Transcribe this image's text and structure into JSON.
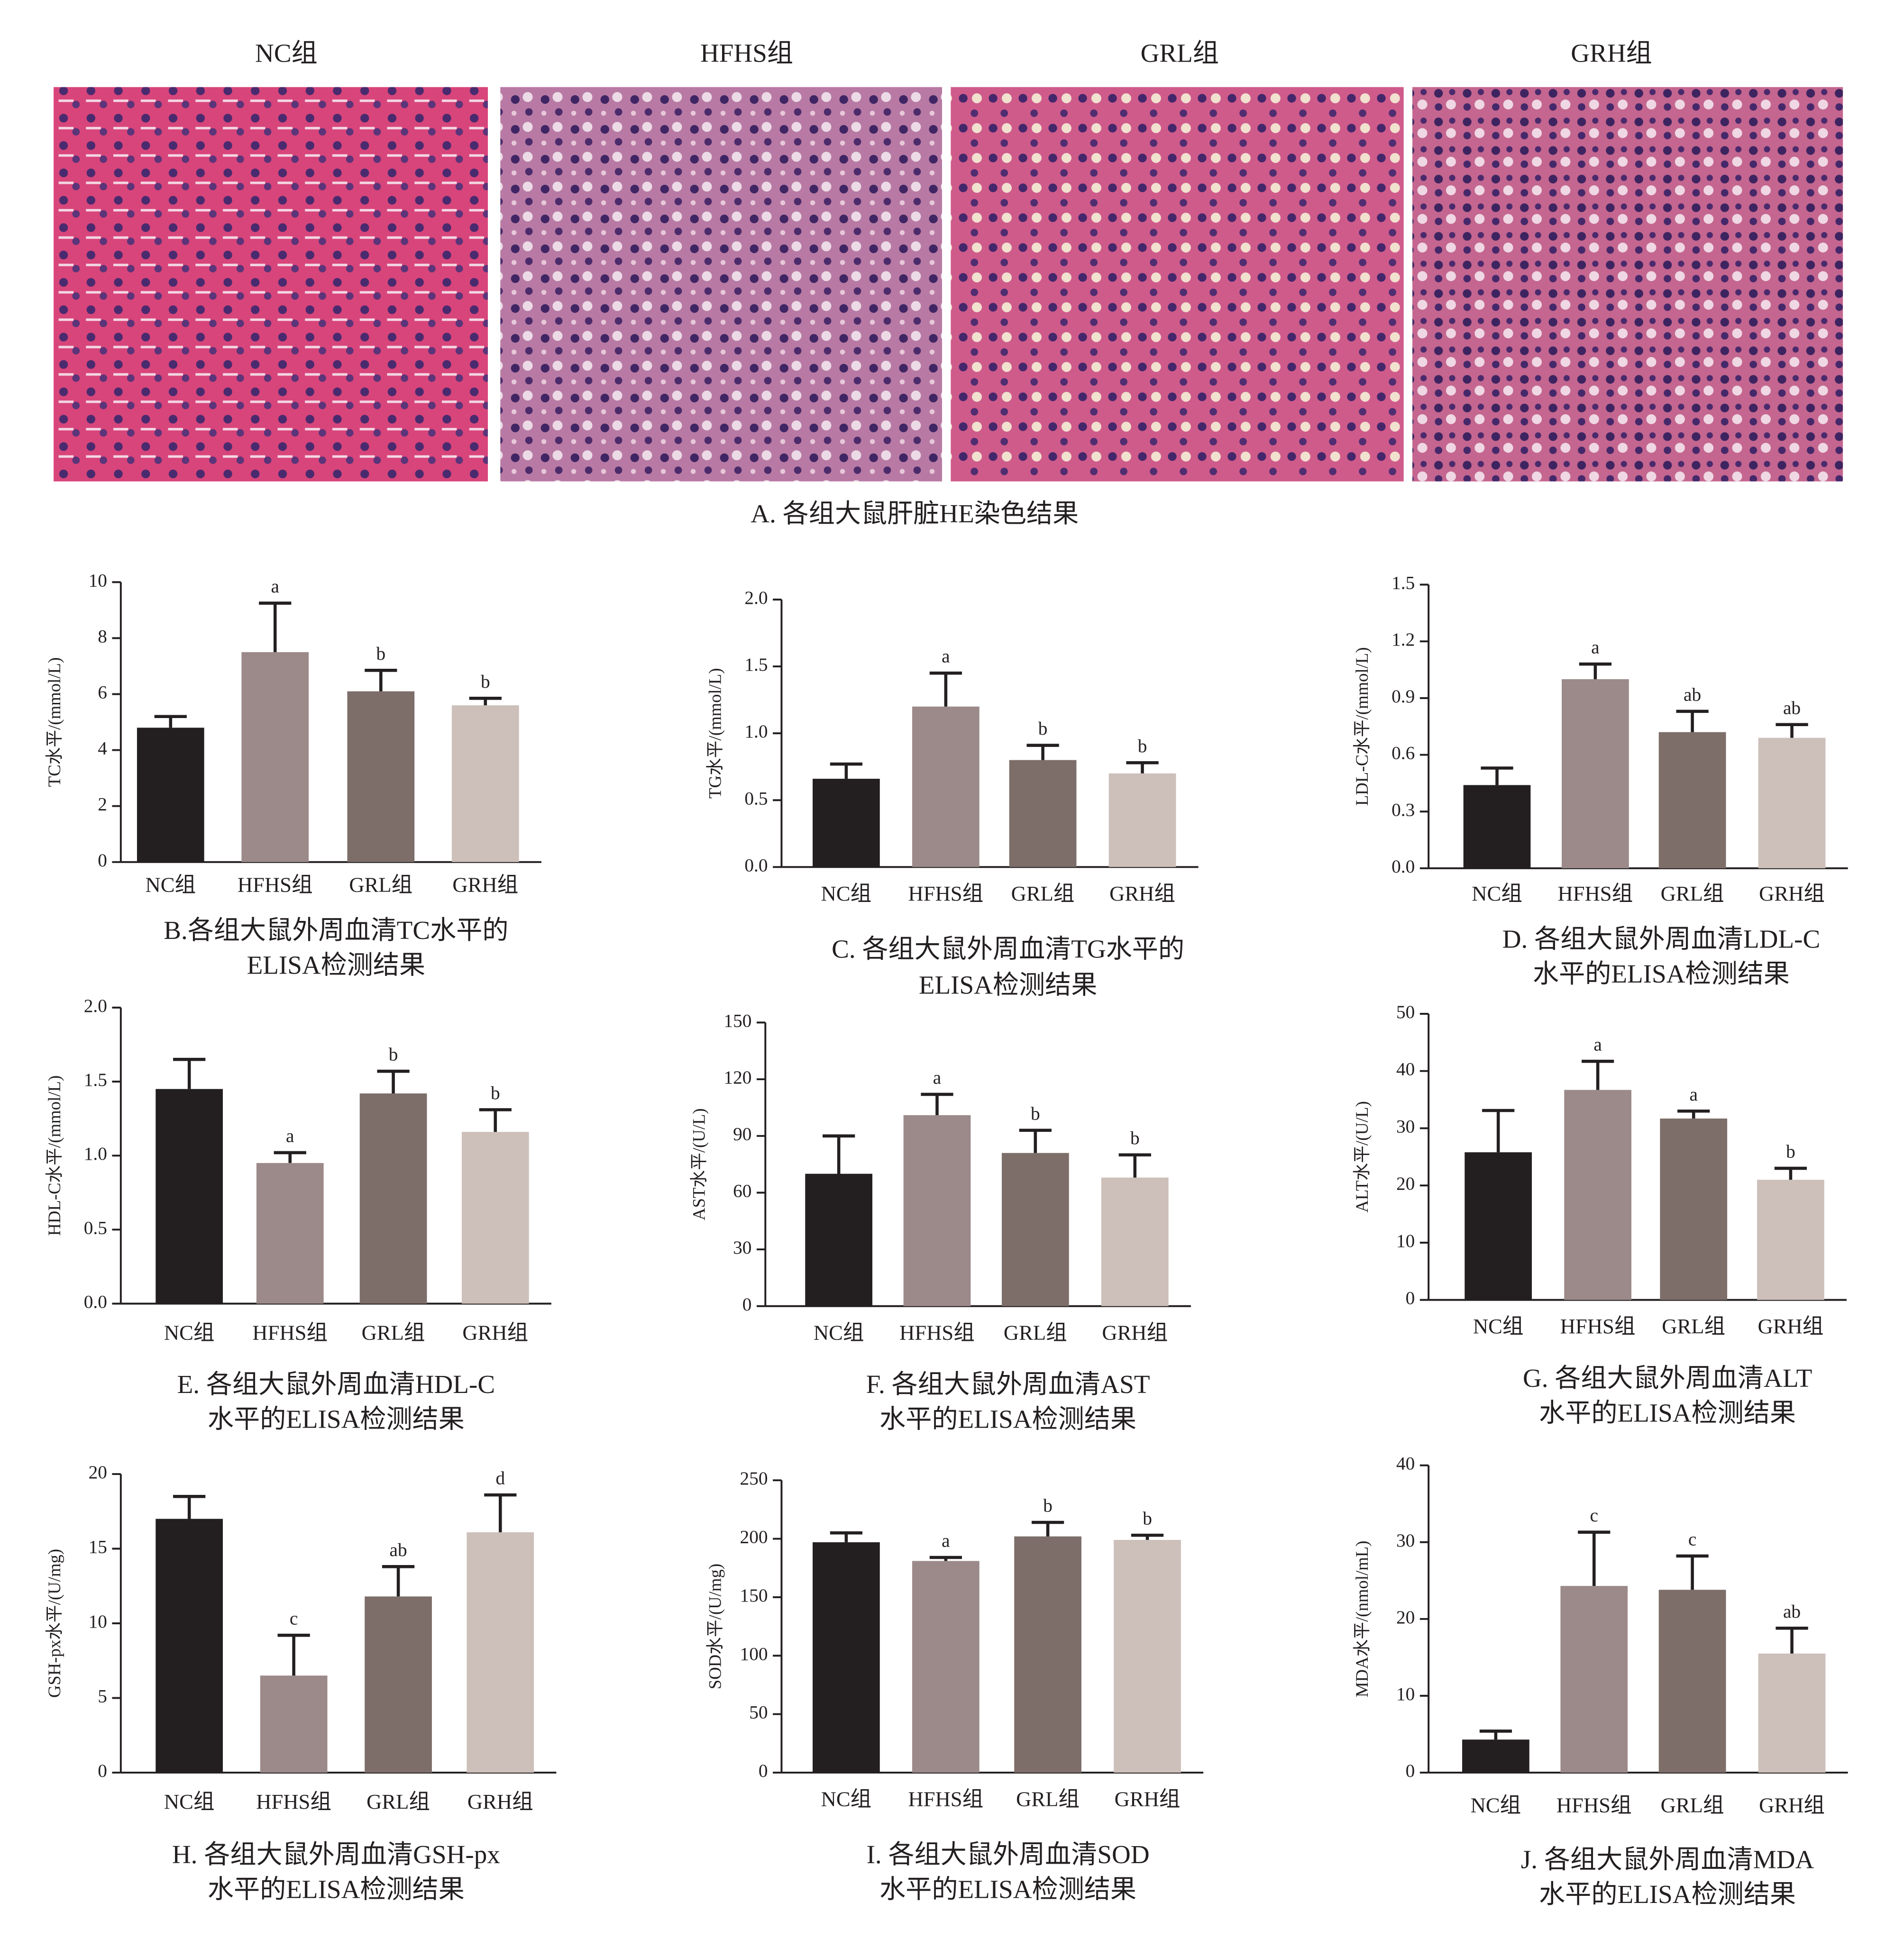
{
  "panel_a": {
    "labels": [
      "NC组",
      "HFHS组",
      "GRL组",
      "GRH组"
    ],
    "caption": "A. 各组大鼠肝脏HE染色结果"
  },
  "chart_data": [
    {
      "type": "bar",
      "title": [
        "B.各组大鼠外周血清TC水平的",
        "ELISA检测结果"
      ],
      "y_label": "TC水平/(mmol/L)",
      "categories": [
        "NC组",
        "HFHS组",
        "GRL组",
        "GRH组"
      ],
      "values": [
        4.8,
        7.5,
        6.1,
        5.6
      ],
      "errors": [
        0.4,
        1.75,
        0.75,
        0.25
      ],
      "annotations": [
        null,
        "a",
        "b",
        "b"
      ],
      "colors": [
        "#231f20",
        "#9b8a89",
        "#7d6e69",
        "#cdbfb9"
      ],
      "ylim": [
        0,
        10
      ],
      "yticks": [
        0,
        2,
        4,
        6,
        8,
        10
      ]
    },
    {
      "type": "bar",
      "title": [
        "C. 各组大鼠外周血清TG水平的",
        "ELISA检测结果"
      ],
      "y_label": "TG水平/(mmol/L)",
      "categories": [
        "NC组",
        "HFHS组",
        "GRL组",
        "GRH组"
      ],
      "values": [
        0.66,
        1.2,
        0.8,
        0.7
      ],
      "errors": [
        0.11,
        0.25,
        0.11,
        0.08
      ],
      "annotations": [
        null,
        "a",
        "b",
        "b"
      ],
      "colors": [
        "#231f20",
        "#9b8a89",
        "#7d6e69",
        "#cdbfb9"
      ],
      "ylim": [
        0,
        2
      ],
      "yticks": [
        {
          "value": 0,
          "label": "0.0"
        },
        0.5,
        {
          "value": 1,
          "label": "1.0"
        },
        1.5,
        {
          "value": 2,
          "label": "2.0"
        }
      ]
    },
    {
      "type": "bar",
      "title": [
        "D. 各组大鼠外周血清LDL-C",
        "水平的ELISA检测结果"
      ],
      "y_label": "LDL-C水平/(mmol/L)",
      "categories": [
        "NC组",
        "HFHS组",
        "GRL组",
        "GRH组"
      ],
      "values": [
        0.44,
        1.0,
        0.72,
        0.69
      ],
      "errors": [
        0.09,
        0.08,
        0.11,
        0.07
      ],
      "annotations": [
        null,
        "a",
        "ab",
        "ab"
      ],
      "colors": [
        "#231f20",
        "#9b8a89",
        "#7d6e69",
        "#cdbfb9"
      ],
      "ylim": [
        0,
        1.5
      ],
      "yticks": [
        {
          "value": 0,
          "label": "0.0"
        },
        0.3,
        0.6,
        0.9,
        1.2,
        1.5
      ]
    },
    {
      "type": "bar",
      "title": [
        "E. 各组大鼠外周血清HDL-C",
        "水平的ELISA检测结果"
      ],
      "y_label": "HDL-C水平/(mmol/L)",
      "categories": [
        "NC组",
        "HFHS组",
        "GRL组",
        "GRH组"
      ],
      "values": [
        1.45,
        0.95,
        1.42,
        1.16
      ],
      "errors": [
        0.2,
        0.07,
        0.15,
        0.15
      ],
      "annotations": [
        null,
        "a",
        "b",
        "b"
      ],
      "colors": [
        "#231f20",
        "#9b8a89",
        "#7d6e69",
        "#cdbfb9"
      ],
      "ylim": [
        0,
        2
      ],
      "yticks": [
        {
          "value": 0,
          "label": "0.0"
        },
        0.5,
        {
          "value": 1,
          "label": "1.0"
        },
        1.5,
        {
          "value": 2,
          "label": "2.0"
        }
      ]
    },
    {
      "type": "bar",
      "title": [
        "F. 各组大鼠外周血清AST",
        "水平的ELISA检测结果"
      ],
      "y_label": "AST水平/(U/L)",
      "categories": [
        "NC组",
        "HFHS组",
        "GRL组",
        "GRH组"
      ],
      "values": [
        70,
        101,
        81,
        68
      ],
      "errors": [
        20,
        11,
        12,
        12
      ],
      "annotations": [
        null,
        "a",
        "b",
        "b"
      ],
      "colors": [
        "#231f20",
        "#9b8a89",
        "#7d6e69",
        "#cdbfb9"
      ],
      "ylim": [
        0,
        150
      ],
      "yticks": [
        0,
        30,
        60,
        90,
        120,
        150
      ]
    },
    {
      "type": "bar",
      "title": [
        "G. 各组大鼠外周血清ALT",
        "水平的ELISA检测结果"
      ],
      "y_label": "ALT水平/(U/L)",
      "categories": [
        "NC组",
        "HFHS组",
        "GRL组",
        "GRH组"
      ],
      "values": [
        25.8,
        36.7,
        31.7,
        21
      ],
      "errors": [
        7.3,
        5,
        1.3,
        2
      ],
      "annotations": [
        null,
        "a",
        "a",
        "b"
      ],
      "colors": [
        "#231f20",
        "#9b8a89",
        "#7d6e69",
        "#cdbfb9"
      ],
      "ylim": [
        0,
        50
      ],
      "yticks": [
        0,
        10,
        20,
        30,
        40,
        50
      ]
    },
    {
      "type": "bar",
      "title": [
        "H. 各组大鼠外周血清GSH-px",
        "水平的ELISA检测结果"
      ],
      "y_label": "GSH-px水平/(U/mg)",
      "categories": [
        "NC组",
        "HFHS组",
        "GRL组",
        "GRH组"
      ],
      "values": [
        17,
        6.5,
        11.8,
        16.1
      ],
      "errors": [
        1.5,
        2.7,
        2,
        2.5
      ],
      "annotations": [
        null,
        "c",
        "ab",
        "d"
      ],
      "colors": [
        "#231f20",
        "#9b8a89",
        "#7d6e69",
        "#cdbfb9"
      ],
      "ylim": [
        0,
        20
      ],
      "yticks": [
        0,
        5,
        10,
        15,
        20
      ]
    },
    {
      "type": "bar",
      "title": [
        "I. 各组大鼠外周血清SOD",
        "水平的ELISA检测结果"
      ],
      "y_label": "SOD水平/(U/mg)",
      "categories": [
        "NC组",
        "HFHS组",
        "GRL组",
        "GRH组"
      ],
      "values": [
        197,
        181,
        202,
        199
      ],
      "errors": [
        8,
        3,
        12,
        4
      ],
      "annotations": [
        null,
        "a",
        "b",
        "b"
      ],
      "colors": [
        "#231f20",
        "#9b8a89",
        "#7d6e69",
        "#cdbfb9"
      ],
      "ylim": [
        0,
        250
      ],
      "yticks": [
        0,
        50,
        100,
        150,
        200,
        250
      ]
    },
    {
      "type": "bar",
      "title": [
        "J. 各组大鼠外周血清MDA",
        "水平的ELISA检测结果"
      ],
      "y_label": "MDA水平/(nmol/mL)",
      "categories": [
        "NC组",
        "HFHS组",
        "GRL组",
        "GRH组"
      ],
      "values": [
        4.3,
        24.3,
        23.8,
        15.5
      ],
      "errors": [
        1.1,
        7,
        4.4,
        3.3
      ],
      "annotations": [
        null,
        "c",
        "c",
        "ab"
      ],
      "colors": [
        "#231f20",
        "#9b8a89",
        "#7d6e69",
        "#cdbfb9"
      ],
      "ylim": [
        0,
        40
      ],
      "yticks": [
        0,
        10,
        20,
        30,
        40
      ]
    }
  ]
}
